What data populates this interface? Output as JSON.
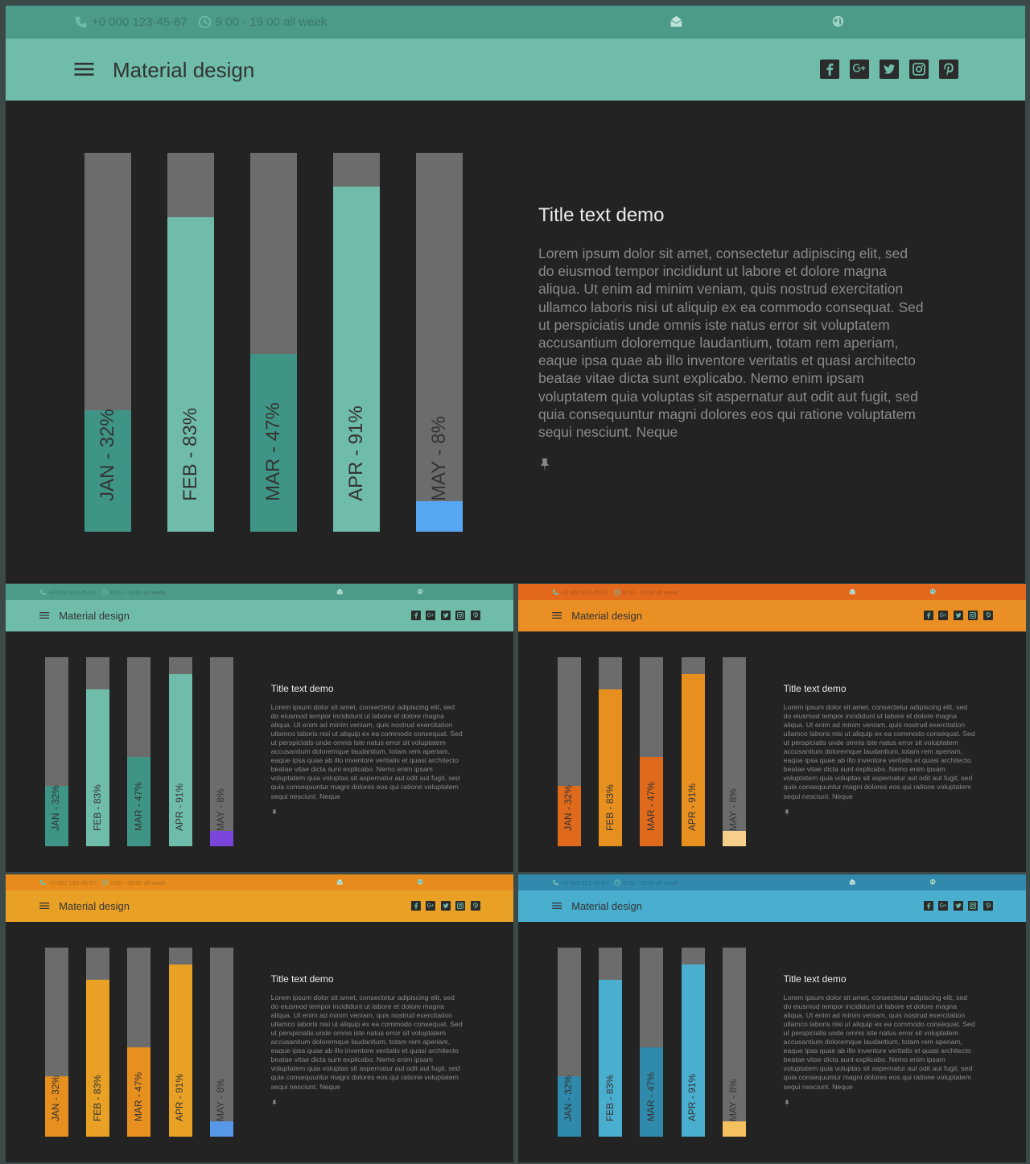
{
  "topbar": {
    "phone": "+0 000 123-45-67",
    "hours": "9:00 - 19:00 all week",
    "phone_icon": "phone-icon",
    "clock_icon": "clock-icon",
    "mail_icon": "mail-open-icon",
    "globe_icon": "globe-icon"
  },
  "header": {
    "menu_icon": "hamburger-menu-icon",
    "brand": "Material design",
    "social": [
      "facebook-icon",
      "google-plus-icon",
      "twitter-icon",
      "instagram-icon",
      "pinterest-icon"
    ]
  },
  "content": {
    "title": "Title text demo",
    "body": "Lorem ipsum dolor sit amet, consectetur adipiscing elit, sed do eiusmod tempor incididunt ut labore et dolore magna aliqua. Ut enim ad minim veniam, quis nostrud exercitation ullamco laboris nisi ut aliquip ex ea commodo consequat. Sed ut perspiciatis unde omnis iste natus error sit voluptatem accusantium doloremque laudantium, totam rem aperiam, eaque ipsa quae ab illo inventore veritatis et quasi architecto beatae vitae dicta sunt explicabo. Nemo enim ipsam voluptatem quia voluptas sit aspernatur aut odit aut fugit, sed quia consequuntur magni dolores eos qui ratione voluptatem sequi nesciunt. Neque",
    "pin_icon": "pushpin-icon"
  },
  "chart_data": {
    "type": "bar",
    "categories": [
      "JAN",
      "FEB",
      "MAR",
      "APR",
      "MAY"
    ],
    "values": [
      32,
      83,
      47,
      91,
      8
    ],
    "labels": [
      "JAN - 32%",
      "FEB - 83%",
      "MAR - 47%",
      "APR - 91%",
      "MAY - 8%"
    ],
    "ylim": [
      0,
      100
    ]
  },
  "themes": [
    {
      "name": "teal",
      "top": "#4b9a8a",
      "header": "#6fbcaa",
      "bars": [
        "#3f9585",
        "#6fbcaa",
        "#3f9585",
        "#6fbcaa",
        "#57a6f2"
      ]
    },
    {
      "name": "teal-alt",
      "top": "#4b9a8a",
      "header": "#6fbcaa",
      "bars": [
        "#3f9585",
        "#6fbcaa",
        "#3f9585",
        "#6fbcaa",
        "#7a45d8"
      ]
    },
    {
      "name": "orange",
      "top": "#e2691c",
      "header": "#ea8f24",
      "bars": [
        "#e06a1c",
        "#e8901f",
        "#e06a1c",
        "#e8901f",
        "#f6d08a"
      ]
    },
    {
      "name": "amber",
      "top": "#e68b1c",
      "header": "#e9a125",
      "bars": [
        "#e8901f",
        "#e9a125",
        "#e8901f",
        "#e9a125",
        "#5797e8"
      ]
    },
    {
      "name": "blue",
      "top": "#3189ad",
      "header": "#4aaecf",
      "bars": [
        "#2f8aab",
        "#4aaecf",
        "#2f8aab",
        "#4aaecf",
        "#f4c060"
      ]
    }
  ]
}
